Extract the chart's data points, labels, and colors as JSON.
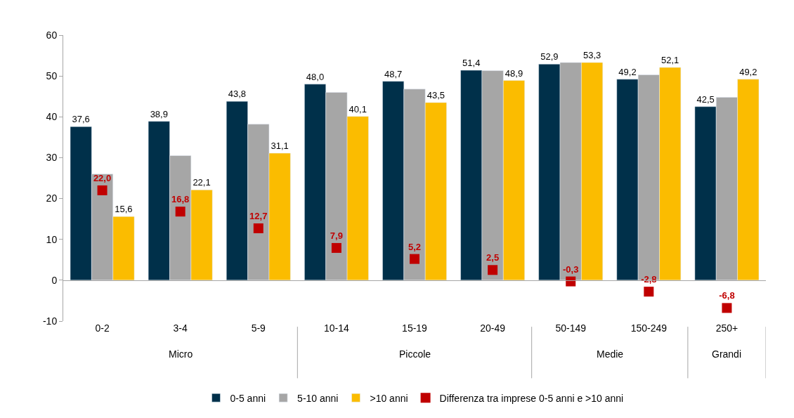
{
  "chart_data": {
    "type": "bar",
    "categories": [
      "0-2",
      "3-4",
      "5-9",
      "10-14",
      "15-19",
      "20-49",
      "50-149",
      "150-249",
      "250+"
    ],
    "series": [
      {
        "name": "0-5 anni",
        "color": "#00304a",
        "values": [
          37.6,
          38.9,
          43.8,
          48.0,
          48.7,
          51.4,
          52.9,
          49.2,
          42.5
        ],
        "value_labels": [
          "37,6",
          "38,9",
          "43,8",
          "48,0",
          "48,7",
          "51,4",
          "52,9",
          "49,2",
          "42,5"
        ]
      },
      {
        "name": "5-10 anni",
        "color": "#a6a6a6",
        "values": [
          26.0,
          30.5,
          38.2,
          46.0,
          46.8,
          51.3,
          53.3,
          50.3,
          44.8
        ],
        "value_labels": [
          null,
          null,
          null,
          null,
          null,
          null,
          null,
          null,
          null
        ]
      },
      {
        "name": ">10 anni",
        "color": "#fbbc00",
        "values": [
          15.6,
          22.1,
          31.1,
          40.1,
          43.5,
          48.9,
          53.3,
          52.1,
          49.2
        ],
        "value_labels": [
          "15,6",
          "22,1",
          "31,1",
          "40,1",
          "43,5",
          "48,9",
          "53,3",
          "52,1",
          "49,2"
        ]
      },
      {
        "name": "Differenza tra imprese 0-5 anni e >10 anni",
        "type": "scatter",
        "marker": "square",
        "color": "#c00000",
        "values": [
          22.0,
          16.8,
          12.7,
          7.9,
          5.2,
          2.5,
          -0.3,
          -2.8,
          -6.8
        ],
        "value_labels": [
          "22,0",
          "16,8",
          "12,7",
          "7,9",
          "5,2",
          "2,5",
          "-0,3",
          "-2,8",
          "-6,8"
        ]
      }
    ],
    "annotations": [
      "Micro",
      "Piccole",
      "Medie",
      "Grandi"
    ],
    "ylim": [
      -10,
      60
    ],
    "yticks": [
      -10,
      0,
      10,
      20,
      30,
      40,
      50,
      60
    ],
    "legend": "bottom"
  }
}
